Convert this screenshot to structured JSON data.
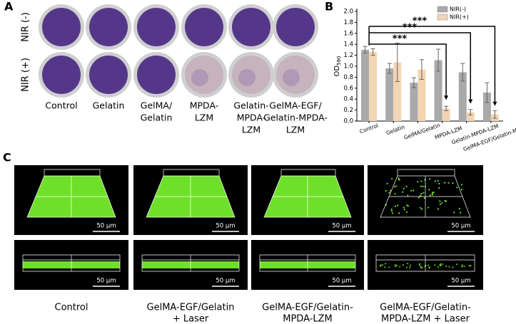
{
  "panel_labels": [
    "A",
    "B",
    "C"
  ],
  "panel_a": {
    "row_labels": [
      "NIR (-)",
      "NIR (+)"
    ],
    "column_labels": [
      [
        "Control"
      ],
      [
        "Gelatin"
      ],
      [
        "GelMA/",
        "Gelatin"
      ],
      [
        "MPDA-",
        "LZM"
      ],
      [
        "Gelatin-",
        "MPDA-",
        "LZM"
      ],
      [
        "GelMA-EGF/",
        "Gelatin-MPDA-",
        "LZM"
      ]
    ]
  },
  "chart_data": {
    "type": "bar",
    "y_label": "OD",
    "y_label_subscript": "590",
    "categories": [
      "Control",
      "Gelatin",
      "GelMA/Gelatin",
      "MPDA-LZM",
      "Gelatin-MPDA-LZM",
      "GelMA-EGF/Gelatin-MPDA-LZM"
    ],
    "series": [
      {
        "name": "NIR(-)",
        "color": "#a9a9a9",
        "values": [
          1.3,
          0.96,
          0.7,
          1.11,
          0.89,
          0.52
        ],
        "errors": [
          0.06,
          0.09,
          0.09,
          0.2,
          0.16,
          0.18
        ]
      },
      {
        "name": "NIR(+)",
        "color": "#f3d5b3",
        "values": [
          1.26,
          1.07,
          0.94,
          0.23,
          0.16,
          0.12
        ],
        "errors": [
          0.06,
          0.35,
          0.18,
          0.04,
          0.05,
          0.07
        ]
      }
    ],
    "ylim": [
      0,
      2.0
    ],
    "yticks": [
      {
        "value": 0,
        "label": "0.0"
      },
      0.2,
      0.4,
      0.6,
      0.8,
      {
        "value": 1.0,
        "label": "1.0"
      },
      1.2,
      1.4,
      1.6,
      1.8,
      {
        "value": 2.0,
        "label": "2.0"
      }
    ],
    "significance": [
      "***",
      "***",
      "***"
    ],
    "legend": "upper right"
  },
  "panel_c": {
    "scale_bars": [
      "50 μm",
      "50 μm",
      "50 μm",
      "50 μm",
      "50 μm",
      "50 μm",
      "50 μm",
      "50 μm"
    ],
    "column_labels": [
      [
        "Control"
      ],
      [
        "GelMA-EGF/Gelatin",
        "+ Laser"
      ],
      [
        "GelMA-EGF/Gelatin-",
        "MPDA-LZM"
      ],
      [
        "GelMA-EGF/Gelatin-",
        "MPDA-LZM + Laser"
      ]
    ]
  }
}
